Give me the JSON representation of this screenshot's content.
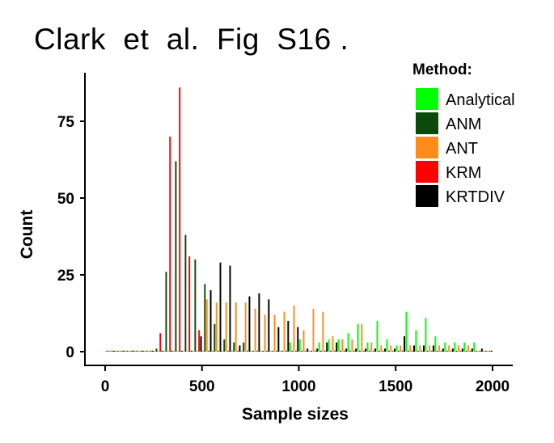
{
  "title": "Clark  et  al.  Fig  S16 .",
  "chart_data": {
    "type": "bar",
    "xlabel": "Sample sizes",
    "ylabel": "Count",
    "xlim": [
      -40,
      2050
    ],
    "ylim": [
      -3,
      92
    ],
    "xticks": [
      0,
      500,
      1000,
      1500,
      2000
    ],
    "yticks": [
      0,
      25,
      50,
      75
    ],
    "bin_width": 50,
    "legend_title": "Method:",
    "legend_position": "top-right",
    "categories": [
      25,
      75,
      125,
      175,
      225,
      275,
      325,
      375,
      425,
      475,
      525,
      575,
      625,
      675,
      725,
      775,
      825,
      875,
      925,
      975,
      1025,
      1075,
      1125,
      1175,
      1225,
      1275,
      1325,
      1375,
      1425,
      1475,
      1525,
      1575,
      1625,
      1675,
      1725,
      1775,
      1825,
      1875,
      1925,
      1975
    ],
    "series": [
      {
        "name": "Analytical",
        "color": "#00ff00",
        "values": [
          0,
          0,
          0,
          0,
          0,
          0,
          0,
          0,
          0,
          0,
          0,
          0,
          0,
          0,
          0,
          0,
          0,
          0,
          0,
          3,
          4,
          0,
          3,
          4,
          4,
          6,
          9,
          3,
          10,
          4,
          2,
          13,
          7,
          11,
          5,
          3,
          3,
          3,
          3,
          0
        ]
      },
      {
        "name": "ANM",
        "color": "#0b4a0b",
        "values": [
          0,
          0,
          0,
          0,
          0,
          1,
          26,
          62,
          38,
          30,
          22,
          9,
          4,
          3,
          3,
          0,
          0,
          0,
          0,
          0,
          0,
          0,
          0,
          0,
          0,
          0,
          0,
          0,
          0,
          0,
          0,
          0,
          0,
          0,
          0,
          0,
          0,
          0,
          0,
          0
        ]
      },
      {
        "name": "ANT",
        "color": "#ff8c1a",
        "values": [
          0,
          0,
          0,
          0,
          0,
          0,
          0,
          0,
          0,
          0,
          17,
          16,
          16,
          16,
          16,
          14,
          12,
          12,
          13,
          15,
          7,
          14,
          13,
          5,
          4,
          4,
          9,
          3,
          2,
          2,
          2,
          2,
          2,
          2,
          2,
          2,
          2,
          2,
          0,
          0
        ]
      },
      {
        "name": "KRM",
        "color": "#ff0000",
        "values": [
          0,
          0,
          0,
          0,
          0,
          6,
          70,
          86,
          31,
          7,
          0,
          0,
          0,
          0,
          0,
          0,
          0,
          0,
          0,
          0,
          0,
          0,
          0,
          0,
          0,
          0,
          0,
          0,
          0,
          0,
          0,
          0,
          0,
          0,
          0,
          0,
          0,
          0,
          0,
          0
        ]
      },
      {
        "name": "KRTDIV",
        "color": "#000000",
        "values": [
          0,
          0,
          0,
          0,
          0,
          0,
          0,
          0,
          0,
          5,
          20,
          29,
          28,
          2,
          18,
          19,
          17,
          8,
          10,
          8,
          1,
          1,
          3,
          3,
          1,
          1,
          1,
          1,
          1,
          1,
          5,
          2,
          2,
          2,
          1,
          1,
          1,
          1,
          1,
          0
        ]
      }
    ]
  }
}
